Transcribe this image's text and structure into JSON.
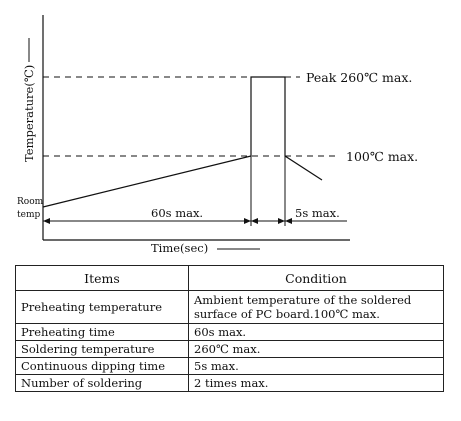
{
  "diagram": {
    "ylabel": "Temperature(℃)",
    "peak_label": "Peak 260℃ max.",
    "mid_label": "100℃ max.",
    "room_label_line1": "Room",
    "room_label_line2": "temp",
    "preheat_duration": "60s max.",
    "dip_duration": "5s max.",
    "xlabel": "Time(sec)"
  },
  "table": {
    "headers": [
      "Items",
      "Condition"
    ],
    "rows": [
      {
        "item": "Preheating temperature",
        "condition_line1": "Ambient temperature of the soldered",
        "condition_line2": "surface of  PC board.100℃ max."
      },
      {
        "item": "Preheating time",
        "condition": "60s max."
      },
      {
        "item": "Soldering temperature",
        "condition": "260℃ max."
      },
      {
        "item": "Continuous dipping time",
        "condition": "5s max."
      },
      {
        "item": "Number of soldering",
        "condition": "2 times max."
      }
    ]
  }
}
